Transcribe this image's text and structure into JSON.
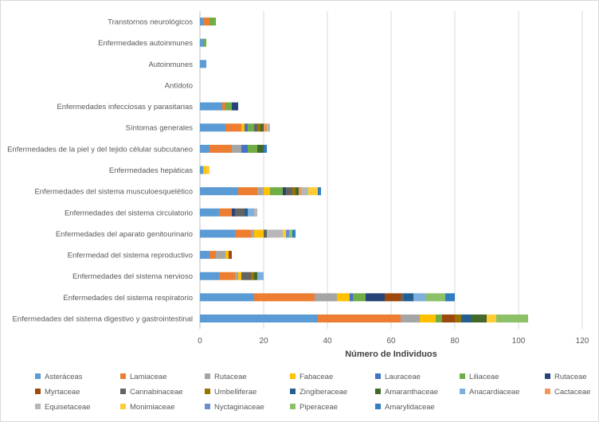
{
  "chart_data": {
    "type": "bar",
    "orientation": "horizontal",
    "stacked": true,
    "title": "",
    "xlabel": "Número de Individuos",
    "ylabel": "",
    "xlim": [
      0,
      120
    ],
    "xticks": [
      0,
      20,
      40,
      60,
      80,
      100,
      120
    ],
    "grid": "vertical",
    "legend_position": "bottom",
    "categories": [
      "Enfermedades del sistema digestivo y gastrointestinal",
      "Enfermedades del sistema respiratorio",
      "Enfermedades del sistema nervioso",
      "Enfermedad del sistema reproductivo",
      "Enfermedades del aparato genitourinario",
      "Enfermedades del sistema circulatorio",
      "Enfermedades del sistema musculoesquelético",
      "Enfermedades hepáticas",
      "Enfermedades de la piel y del tejido célular subcutaneo",
      "Síntomas generales",
      "Enfermedades infecciosas y parasitarias",
      "Antídoto",
      "Autoinmunes",
      "Enfermedades autoinmunes",
      "Transtornos neurológicos"
    ],
    "series": [
      {
        "name": "Asteráceas",
        "color": "#5b9bd5",
        "values": [
          37,
          17,
          6,
          3,
          11,
          6,
          12,
          1,
          3,
          8,
          7,
          0,
          2,
          1,
          1
        ]
      },
      {
        "name": "Lamiaceae",
        "color": "#ed7d31",
        "values": [
          26,
          19,
          5,
          2,
          5,
          4,
          6,
          0,
          7,
          5,
          1,
          0,
          0,
          0,
          2
        ]
      },
      {
        "name": "Rutaceae",
        "color": "#a5a5a5",
        "values": [
          6,
          7,
          1,
          3,
          1,
          0,
          2,
          0,
          3,
          0,
          0,
          0,
          0,
          0,
          0
        ]
      },
      {
        "name": "Fabaceae",
        "color": "#ffc000",
        "values": [
          5,
          4,
          1,
          1,
          3,
          0,
          2,
          1,
          0,
          1,
          0,
          0,
          0,
          0,
          0
        ]
      },
      {
        "name": "Lauraceae",
        "color": "#4472c4",
        "values": [
          0,
          1,
          0,
          0,
          0,
          0,
          0,
          0,
          2,
          1,
          0,
          0,
          0,
          0,
          0
        ]
      },
      {
        "name": "Liliaceae",
        "color": "#70ad47",
        "values": [
          2,
          4,
          0,
          0,
          0,
          0,
          4,
          0,
          3,
          2,
          2,
          0,
          0,
          1,
          2
        ]
      },
      {
        "name": "Rutaceae",
        "color": "#264478",
        "values": [
          0,
          6,
          0,
          0,
          0,
          1,
          1,
          0,
          0,
          0,
          2,
          0,
          0,
          0,
          0
        ]
      },
      {
        "name": "Myrtaceae",
        "color": "#9e480e",
        "values": [
          4,
          5,
          0,
          1,
          0,
          0,
          0,
          0,
          0,
          0,
          0,
          0,
          0,
          0,
          0
        ]
      },
      {
        "name": "Cannabinaceae",
        "color": "#636363",
        "values": [
          0,
          1,
          3,
          0,
          1,
          3,
          2,
          0,
          0,
          1,
          0,
          0,
          0,
          0,
          0
        ]
      },
      {
        "name": "Umbelliferae",
        "color": "#997300",
        "values": [
          2,
          0,
          1,
          0,
          0,
          0,
          1,
          0,
          0,
          1,
          0,
          0,
          0,
          0,
          0
        ]
      },
      {
        "name": "Zingiberaceae",
        "color": "#255e91",
        "values": [
          3,
          3,
          0,
          0,
          0,
          1,
          0,
          0,
          0,
          0,
          0,
          0,
          0,
          0,
          0
        ]
      },
      {
        "name": "Amaranthaceae",
        "color": "#43682b",
        "values": [
          5,
          0,
          1,
          0,
          0,
          0,
          1,
          0,
          2,
          1,
          0,
          0,
          0,
          0,
          0
        ]
      },
      {
        "name": "Anacardiaceae",
        "color": "#7cafdd",
        "values": [
          0,
          4,
          2,
          0,
          0,
          2,
          0,
          0,
          0,
          0,
          0,
          0,
          0,
          0,
          0
        ]
      },
      {
        "name": "Cactaceae",
        "color": "#f1975a",
        "values": [
          0,
          0,
          0,
          0,
          0,
          0,
          1,
          0,
          0,
          1,
          0,
          0,
          0,
          0,
          0
        ]
      },
      {
        "name": "Equisetaceae",
        "color": "#b7b7b7",
        "values": [
          0,
          0,
          0,
          0,
          5,
          1,
          2,
          0,
          0,
          1,
          0,
          0,
          0,
          0,
          0
        ]
      },
      {
        "name": "Monimiaceae",
        "color": "#ffcd33",
        "values": [
          3,
          0,
          0,
          0,
          1,
          0,
          3,
          1,
          0,
          0,
          0,
          0,
          0,
          0,
          0
        ]
      },
      {
        "name": "Nyctaginaceae",
        "color": "#698ed0",
        "values": [
          0,
          0,
          0,
          0,
          1,
          0,
          0,
          0,
          0,
          0,
          0,
          0,
          0,
          0,
          0
        ]
      },
      {
        "name": "Piperaceae",
        "color": "#8cc168",
        "values": [
          10,
          6,
          0,
          0,
          1,
          0,
          0,
          0,
          0,
          0,
          0,
          0,
          0,
          0,
          0
        ]
      },
      {
        "name": "Amarylidaceae",
        "color": "#327dc2",
        "values": [
          0,
          3,
          0,
          0,
          1,
          0,
          1,
          0,
          1,
          0,
          0,
          0,
          0,
          0,
          0
        ]
      }
    ]
  }
}
